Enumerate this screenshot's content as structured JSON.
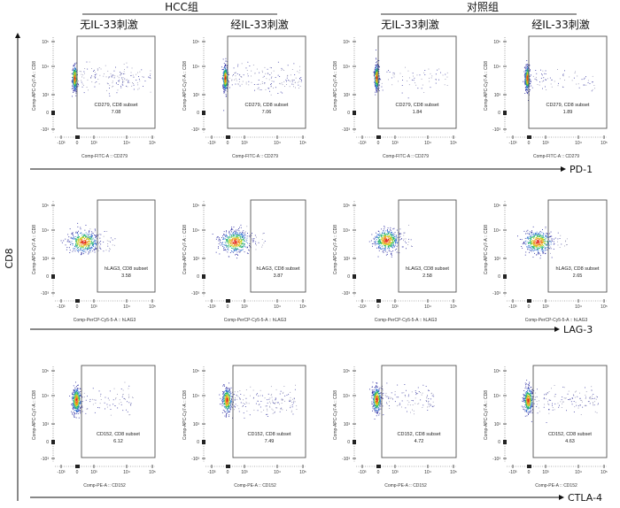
{
  "groups": [
    {
      "label": "HCC组",
      "columns": [
        "无IL-33刺激",
        "经IL-33刺激"
      ]
    },
    {
      "label": "对照组",
      "columns": [
        "无IL-33刺激",
        "经IL-33刺激"
      ]
    }
  ],
  "y_marker": "CD8",
  "row_markers": [
    "PD-1",
    "LAG-3",
    "CTLA-4"
  ],
  "chart_data": {
    "type": "scatter",
    "plot_kind": "flow cytometry density dot plot",
    "y_label": "Comp-APC-Cy7-A :: CD8",
    "x_ticks": [
      "-10³",
      "0",
      "10³",
      "10⁴",
      "10⁵"
    ],
    "y_ticks": [
      "10⁵",
      "10⁴",
      "10³",
      "0",
      "-10³"
    ],
    "x_scale": "biexponential",
    "y_scale": "biexponential",
    "density_colors": [
      "#2a2aa0",
      "#2f6fd0",
      "#1fb36a",
      "#c8d21e",
      "#f08a1e",
      "#e0241e"
    ],
    "gate_color": "#555555",
    "rows": [
      {
        "marker": "PD-1",
        "x_label": "Comp-FITC-A :: CD279",
        "gate_label": "CD279, CD8 subset",
        "values": [
          "7.08",
          "7.06",
          "1.84",
          "1.89"
        ]
      },
      {
        "marker": "LAG-3",
        "x_label": "Comp-PerCP-Cy5-5-A :: hLAG3",
        "gate_label": "hLAG3, CD8 subset",
        "values": [
          "3.58",
          "3.87",
          "2.58",
          "2.65"
        ]
      },
      {
        "marker": "CTLA-4",
        "x_label": "Comp-PE-A :: CD152",
        "gate_label": "CD152, CD8 subset",
        "values": [
          "6.12",
          "7.49",
          "4.72",
          "4.63"
        ]
      }
    ]
  }
}
